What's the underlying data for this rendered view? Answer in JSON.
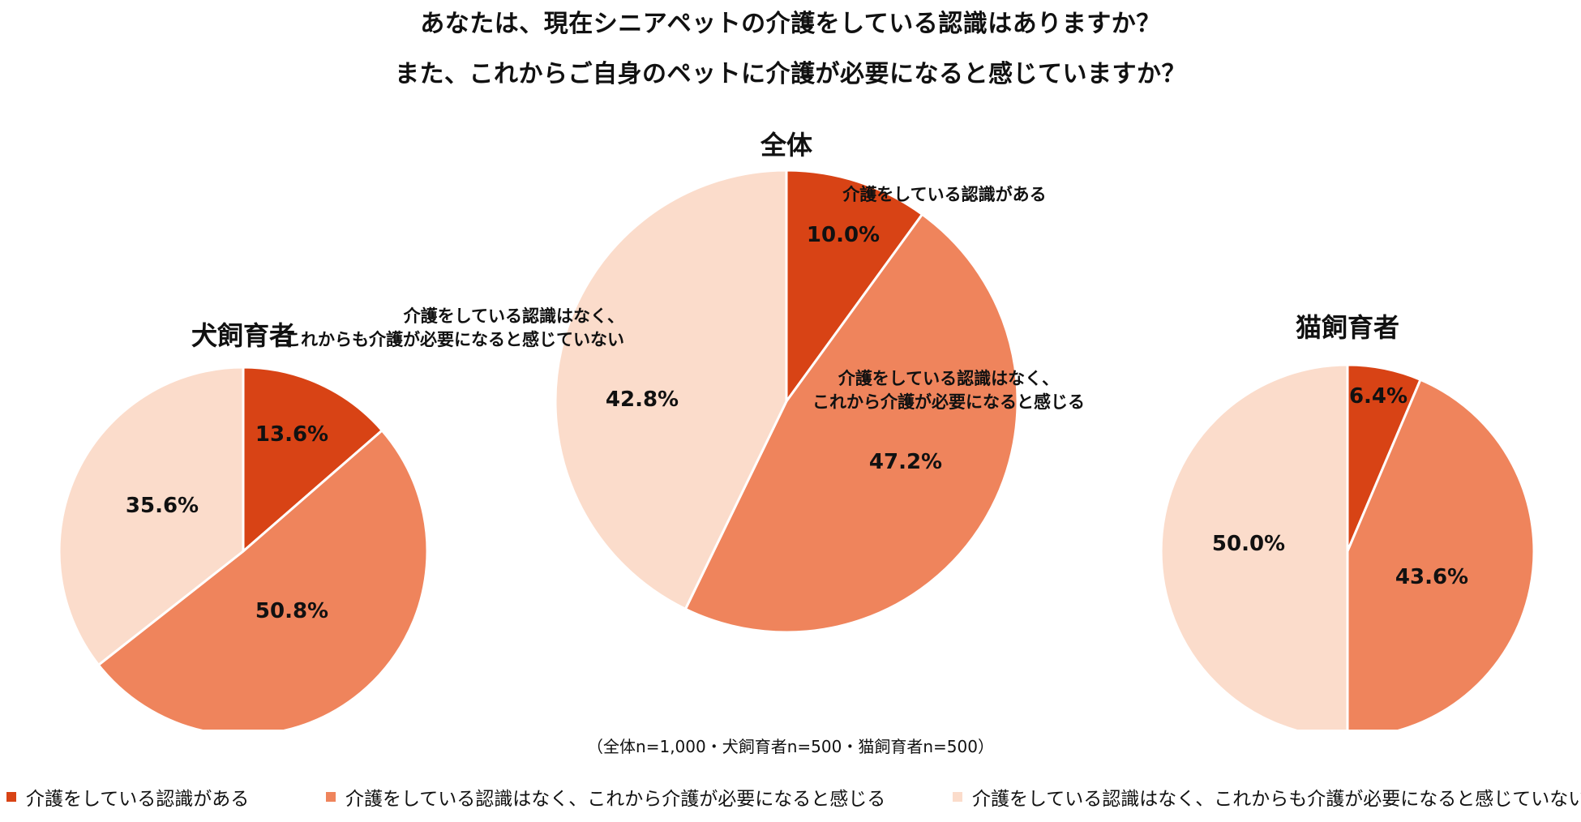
{
  "title_line1": "あなたは、現在シニアペットの介護をしている認識はありますか？",
  "title_line2": "また、これからご自身のペットに介護が必要になると感じていますか？",
  "note": "（全体n=1,000・犬飼育者n=500・猫飼育者n=500）",
  "colors": [
    "#d84315",
    "#ef845c",
    "#fbdccb"
  ],
  "legend": [
    "介護をしている認識がある",
    "介護をしている認識はなく、これから介護が必要になると感じる",
    "介護をしている認識はなく、これからも介護が必要になると感じていない"
  ],
  "chart_data": [
    {
      "type": "pie",
      "title": "全体",
      "categories": [
        "介護をしている認識がある",
        "介護をしている認識はなく、これから介護が必要になると感じる",
        "介護をしている認識はなく、これからも介護が必要になると感じていない"
      ],
      "values": [
        10.0,
        47.2,
        42.8
      ],
      "value_labels": [
        "10.0%",
        "47.2%",
        "42.8%"
      ],
      "category_labels": [
        [
          "介護をしている認識がある"
        ],
        [
          "介護をしている認識はなく、",
          "これから介護が必要になると感じる"
        ],
        [
          "介護をしている認識はなく、",
          "これからも介護が必要になると感じていない"
        ]
      ]
    },
    {
      "type": "pie",
      "title": "犬飼育者",
      "categories": [
        "介護をしている認識がある",
        "介護をしている認識はなく、これから介護が必要になると感じる",
        "介護をしている認識はなく、これからも介護が必要になると感じていない"
      ],
      "values": [
        13.6,
        50.8,
        35.6
      ],
      "value_labels": [
        "13.6%",
        "50.8%",
        "35.6%"
      ]
    },
    {
      "type": "pie",
      "title": "猫飼育者",
      "categories": [
        "介護をしている認識がある",
        "介護をしている認識はなく、これから介護が必要になると感じる",
        "介護をしている認識はなく、これからも介護が必要になると感じていない"
      ],
      "values": [
        6.4,
        43.6,
        50.0
      ],
      "value_labels": [
        "6.4%",
        "43.6%",
        "50.0%"
      ]
    }
  ]
}
